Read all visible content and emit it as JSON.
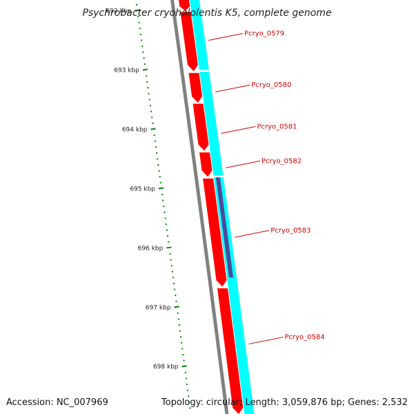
{
  "title": "Psychrobacter cryohalolentis K5, complete genome",
  "footer": {
    "accession": "Accession: NC_007969",
    "summary": "Topology: circular; Length: 3,059,876 bp; Genes: 2,532"
  },
  "colors": {
    "background": "#ffffff",
    "backbone": "#808080",
    "forward_cds": "#ff0000",
    "reverse_track": "#00ffff",
    "highlight_feature": "#4b4b9b",
    "tick": "#008000",
    "label": "#cc0000"
  },
  "ticks": [
    {
      "label": "692 kbp",
      "pos": 692
    },
    {
      "label": "693 kbp",
      "pos": 693
    },
    {
      "label": "694 kbp",
      "pos": 694
    },
    {
      "label": "695 kbp",
      "pos": 695
    },
    {
      "label": "696 kbp",
      "pos": 696
    },
    {
      "label": "697 kbp",
      "pos": 697
    },
    {
      "label": "698 kbp",
      "pos": 698
    }
  ],
  "view": {
    "start_kbp": 691.82,
    "end_kbp": 698.8
  },
  "genes": [
    {
      "name": "Pcryo_0579",
      "label_at_kbp": 692.5
    },
    {
      "name": "Pcryo_0580",
      "label_at_kbp": 693.37
    },
    {
      "name": "Pcryo_0581",
      "label_at_kbp": 694.07
    },
    {
      "name": "Pcryo_0582",
      "label_at_kbp": 694.65
    },
    {
      "name": "Pcryo_0583",
      "label_at_kbp": 695.82
    },
    {
      "name": "Pcryo_0584",
      "label_at_kbp": 697.62
    }
  ],
  "forward_cds_segments": [
    {
      "start": 691.82,
      "end": 692.0
    },
    {
      "start": 692.02,
      "end": 693.02
    },
    {
      "start": 693.05,
      "end": 693.55
    },
    {
      "start": 693.57,
      "end": 694.36
    },
    {
      "start": 694.39,
      "end": 694.8
    },
    {
      "start": 694.83,
      "end": 696.65
    },
    {
      "start": 696.68,
      "end": 698.8
    }
  ],
  "reverse_segments": [
    {
      "start": 691.82,
      "end": 693.0
    },
    {
      "start": 693.03,
      "end": 694.78
    },
    {
      "start": 694.81,
      "end": 698.8
    }
  ],
  "highlight_segment": {
    "start": 694.81,
    "end": 696.5
  }
}
